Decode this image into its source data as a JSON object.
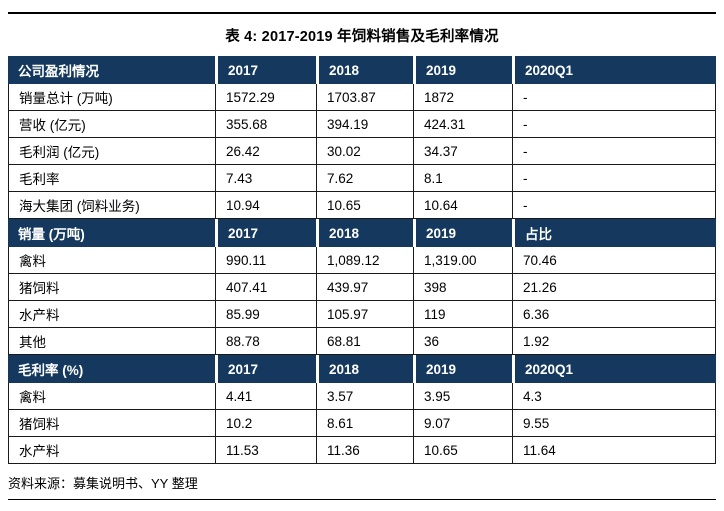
{
  "page": {
    "title": "表 4: 2017-2019 年饲料销售及毛利率情况",
    "source": "资料来源：募集说明书、YY 整理"
  },
  "colors": {
    "header-bg": "#15395E",
    "border": "#1A1A1A",
    "header-text": "#FFFFFF"
  },
  "table": {
    "sections": [
      {
        "header": [
          "公司盈利情况",
          "2017",
          "2018",
          "2019",
          "2020Q1"
        ],
        "rows": [
          [
            "销量总计 (万吨)",
            "1572.29",
            "1703.87",
            "1872",
            "-"
          ],
          [
            "营收 (亿元)",
            "355.68",
            "394.19",
            "424.31",
            "-"
          ],
          [
            "毛利润 (亿元)",
            "26.42",
            "30.02",
            "34.37",
            "-"
          ],
          [
            "毛利率",
            "7.43",
            "7.62",
            "8.1",
            "-"
          ],
          [
            "海大集团 (饲料业务)",
            "10.94",
            "10.65",
            "10.64",
            "-"
          ]
        ]
      },
      {
        "header": [
          "销量 (万吨)",
          "2017",
          "2018",
          "2019",
          "占比"
        ],
        "rows": [
          [
            "禽料",
            "990.11",
            "1,089.12",
            "1,319.00",
            "70.46"
          ],
          [
            "猪饲料",
            "407.41",
            "439.97",
            "398",
            "21.26"
          ],
          [
            "水产料",
            "85.99",
            "105.97",
            "119",
            "6.36"
          ],
          [
            "其他",
            "88.78",
            "68.81",
            "36",
            "1.92"
          ]
        ]
      },
      {
        "header": [
          "毛利率 (%)",
          "2017",
          "2018",
          "2019",
          "2020Q1"
        ],
        "rows": [
          [
            "禽料",
            "4.41",
            "3.57",
            "3.95",
            "4.3"
          ],
          [
            "猪饲料",
            "10.2",
            "8.61",
            "9.07",
            "9.55"
          ],
          [
            "水产料",
            "11.53",
            "11.36",
            "10.65",
            "11.64"
          ]
        ]
      }
    ]
  }
}
